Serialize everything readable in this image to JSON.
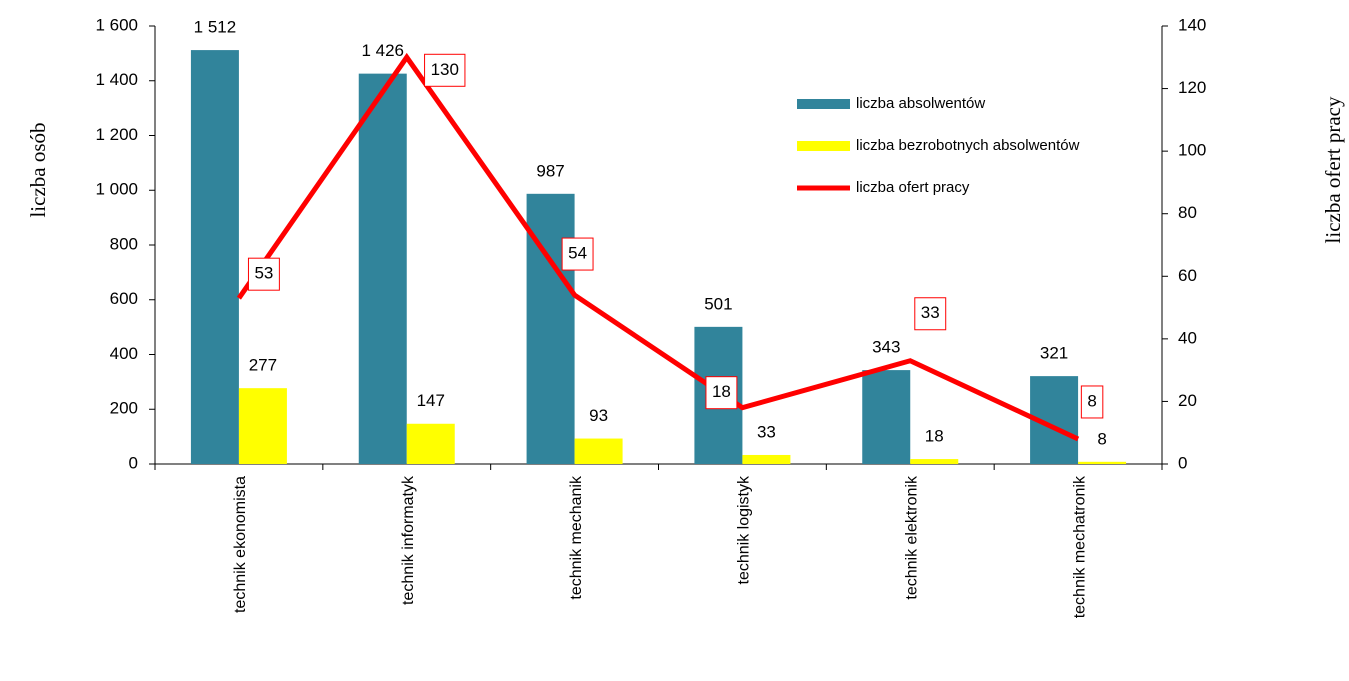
{
  "chart_data": {
    "type": "bar",
    "categories": [
      "technik ekonomista",
      "technik informatyk",
      "technik mechanik",
      "technik logistyk",
      "technik elektronik",
      "technik mechatronik"
    ],
    "series": [
      {
        "name": "liczba absolwentów",
        "color": "#31849b",
        "values": [
          1512,
          1426,
          987,
          501,
          343,
          321
        ],
        "value_labels": [
          "1 512",
          "1 426",
          "987",
          "501",
          "343",
          "321"
        ]
      },
      {
        "name": "liczba bezrobotnych absolwentów",
        "color": "#ffff00",
        "values": [
          277,
          147,
          93,
          33,
          18,
          8
        ]
      },
      {
        "name": "liczba ofert pracy",
        "color": "#ff0000",
        "type": "line",
        "axis": "y2",
        "values": [
          53,
          130,
          54,
          18,
          33,
          8
        ]
      }
    ],
    "y_label": "liczba osób",
    "y2_label": "liczba ofert pracy",
    "ylim": [
      0,
      1600
    ],
    "yticks": [
      0,
      200,
      400,
      600,
      800,
      {
        "value": 1000,
        "label": "1 000"
      },
      {
        "value": 1200,
        "label": "1 200"
      },
      {
        "value": 1400,
        "label": "1 400"
      },
      {
        "value": 1600,
        "label": "1 600"
      }
    ],
    "y2lim": [
      0,
      140
    ],
    "y2ticks": [
      0,
      20,
      40,
      60,
      80,
      100,
      120,
      140
    ],
    "legend": "upper right"
  }
}
